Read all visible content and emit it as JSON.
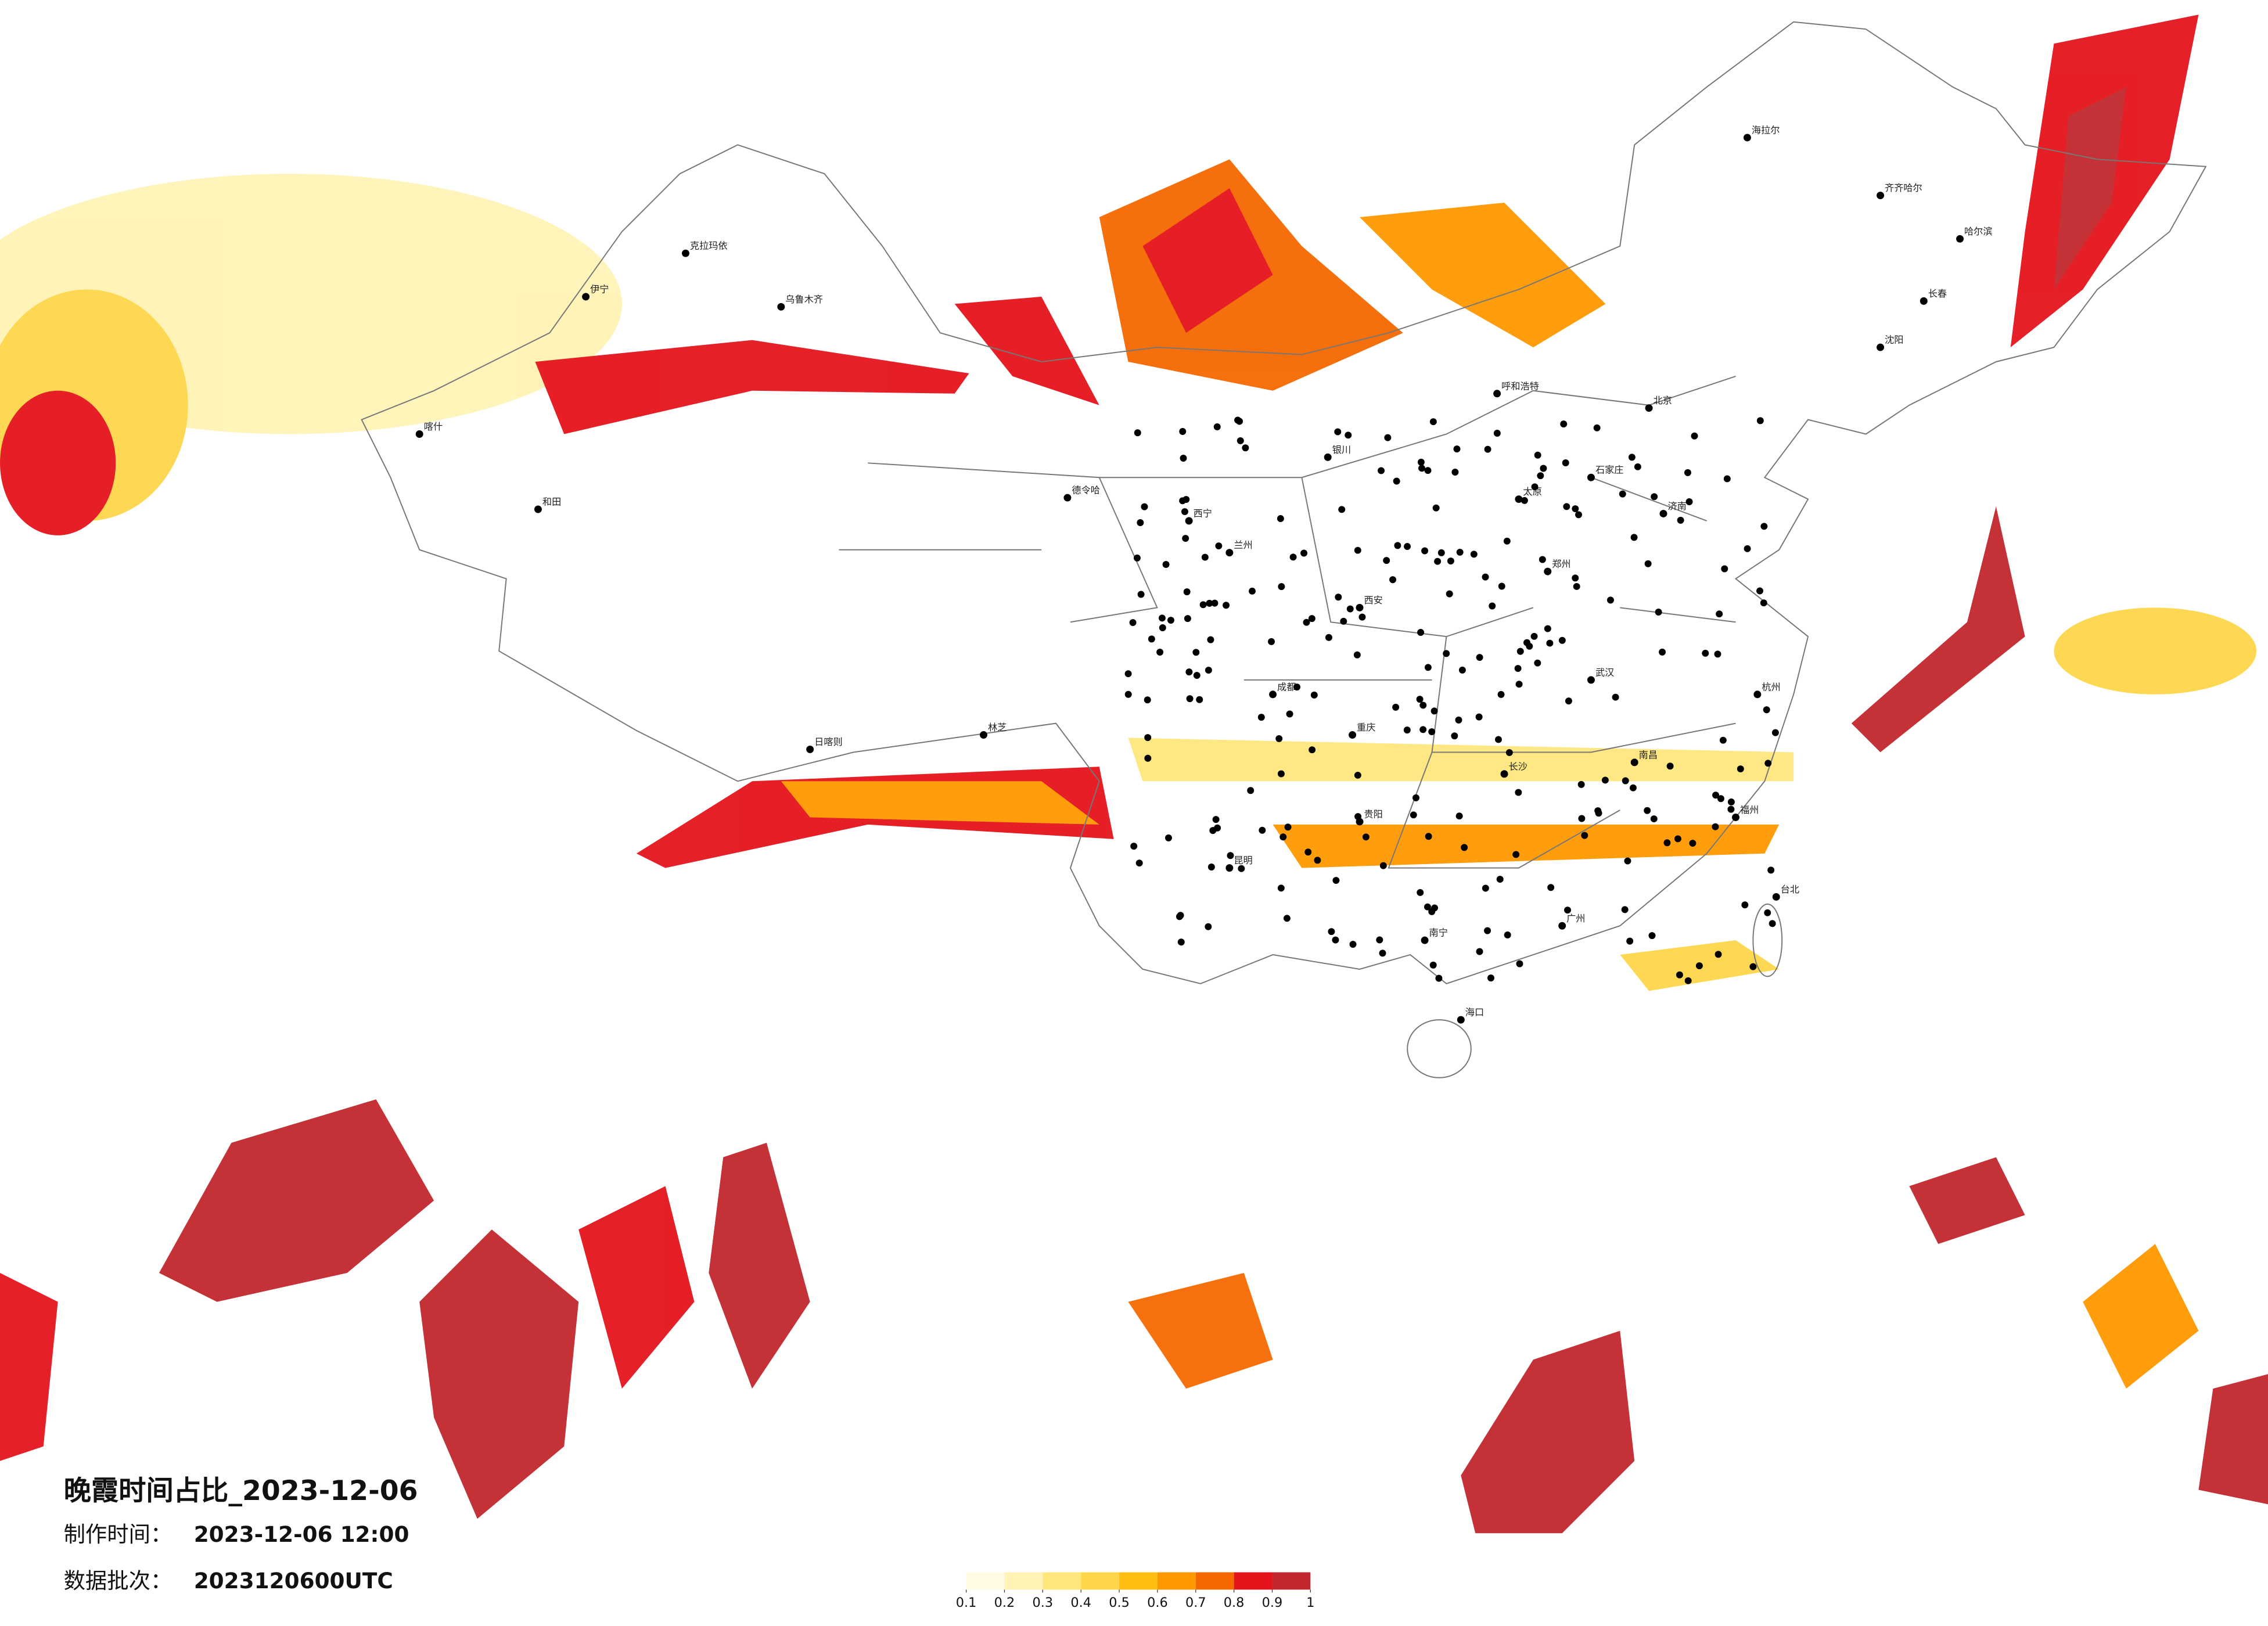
{
  "title": "晚霞时间占比_2023-12-06",
  "production_time": {
    "label": "制作时间：",
    "value": "2023-12-06 12:00"
  },
  "data_batch": {
    "label": "数据批次：",
    "value": "2023120600UTC"
  },
  "colorbar": {
    "ticks": [
      0.1,
      0.2,
      0.3,
      0.4,
      0.5,
      0.6,
      0.7,
      0.8,
      0.9,
      1
    ],
    "colors": [
      "#fffbe3",
      "#fff3b5",
      "#ffe77c",
      "#ffd64a",
      "#ffbe0f",
      "#ff9800",
      "#f56800",
      "#e5141c",
      "#c1272d"
    ]
  },
  "cities": [
    "伊宁",
    "乌鲁木齐",
    "克拉玛依",
    "喀什",
    "和田",
    "德令哈",
    "日喀则",
    "林芝",
    "西宁",
    "兰州",
    "银川",
    "呼和浩特",
    "海拉尔",
    "齐齐哈尔",
    "哈尔滨",
    "长春",
    "沈阳",
    "北京",
    "石家庄",
    "太原",
    "济南",
    "郑州",
    "西安",
    "武汉",
    "成都",
    "重庆",
    "贵阳",
    "昆明",
    "长沙",
    "南昌",
    "杭州",
    "福州",
    "广州",
    "南宁",
    "海口",
    "台北"
  ]
}
